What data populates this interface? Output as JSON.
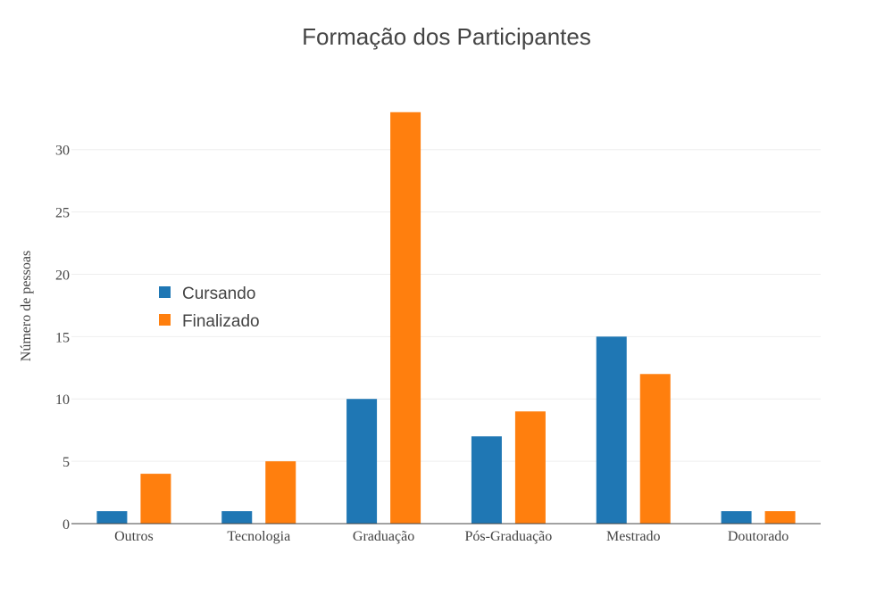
{
  "chart_data": {
    "type": "bar",
    "title": "Formação dos Participantes",
    "xlabel": "",
    "ylabel": "Número de pessoas",
    "categories": [
      "Outros",
      "Tecnologia",
      "Graduação",
      "Pós-Graduação",
      "Mestrado",
      "Doutorado"
    ],
    "series": [
      {
        "name": "Cursando",
        "color": "#1f77b4",
        "values": [
          1,
          1,
          10,
          7,
          15,
          1
        ]
      },
      {
        "name": "Finalizado",
        "color": "#ff7f0e",
        "values": [
          4,
          5,
          33,
          9,
          12,
          1
        ]
      }
    ],
    "ylim": [
      0,
      34.7
    ],
    "yticks": [
      0,
      5,
      10,
      15,
      20,
      25,
      30
    ],
    "grid": true,
    "legend_position": "top-left"
  }
}
